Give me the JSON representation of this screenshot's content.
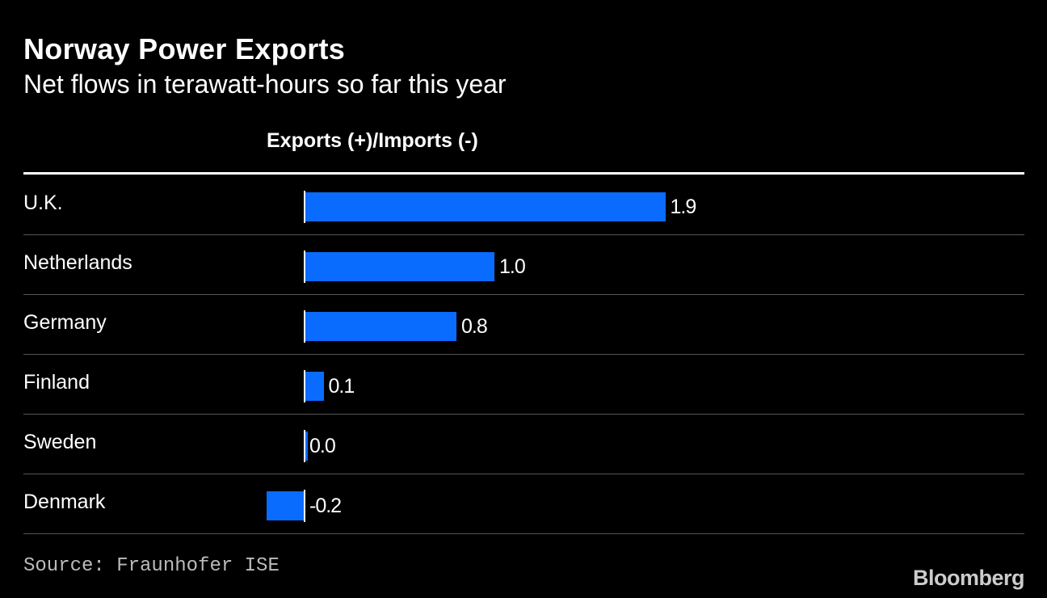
{
  "title": "Norway Power Exports",
  "subtitle": "Net flows in terawatt-hours so far this year",
  "column_header": "Exports (+)/Imports (-)",
  "source": "Source: Fraunhofer ISE",
  "brand": "Bloomberg",
  "colors": {
    "background": "#000000",
    "bar": "#0a6cff",
    "text": "#ffffff"
  },
  "chart_data": {
    "type": "bar",
    "orientation": "horizontal",
    "title": "Norway Power Exports",
    "subtitle": "Net flows in terawatt-hours so far this year",
    "xlabel": "Exports (+)/Imports (-)",
    "ylabel": "",
    "categories": [
      "U.K.",
      "Netherlands",
      "Germany",
      "Finland",
      "Sweden",
      "Denmark"
    ],
    "values": [
      1.9,
      1.0,
      0.8,
      0.1,
      0.0,
      -0.2
    ],
    "value_labels": [
      "1.9",
      "1.0",
      "0.8",
      "0.1",
      "0.0",
      "-0.2"
    ],
    "xlim": [
      -0.2,
      1.9
    ],
    "unit": "TWh"
  }
}
